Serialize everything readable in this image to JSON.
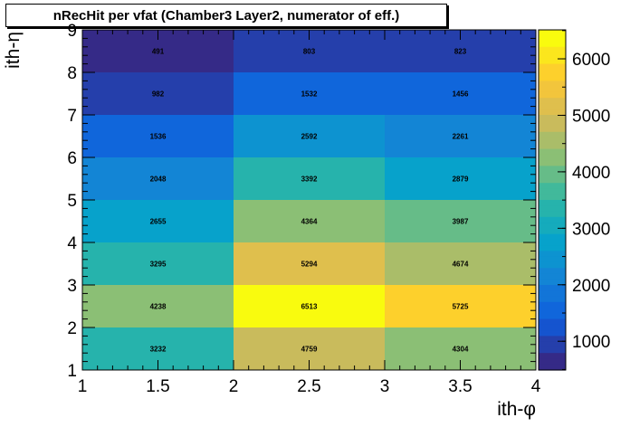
{
  "chart_data": {
    "type": "heatmap",
    "title": "nRecHit per vfat (Chamber3 Layer2, numerator of eff.)",
    "xlabel": "ith-φ",
    "ylabel": "ith-η",
    "xlim": [
      1,
      4
    ],
    "ylim": [
      1,
      9
    ],
    "x_ticks": [
      "1",
      "1.5",
      "2",
      "2.5",
      "3",
      "3.5",
      "4"
    ],
    "y_ticks": [
      "1",
      "2",
      "3",
      "4",
      "5",
      "6",
      "7",
      "8",
      "9"
    ],
    "x_bins": [
      [
        1,
        2
      ],
      [
        2,
        3
      ],
      [
        3,
        4
      ]
    ],
    "y_bins": [
      [
        1,
        2
      ],
      [
        2,
        3
      ],
      [
        3,
        4
      ],
      [
        4,
        5
      ],
      [
        5,
        6
      ],
      [
        6,
        7
      ],
      [
        7,
        8
      ],
      [
        8,
        9
      ]
    ],
    "values": [
      [
        3232,
        4759,
        4304
      ],
      [
        4238,
        6513,
        5725
      ],
      [
        3295,
        5294,
        4674
      ],
      [
        2655,
        4364,
        3987
      ],
      [
        2048,
        3392,
        2879
      ],
      [
        1536,
        2592,
        2261
      ],
      [
        982,
        1532,
        1456
      ],
      [
        491,
        803,
        823
      ]
    ],
    "zlim": [
      491,
      6513
    ],
    "z_ticks": [
      "1000",
      "2000",
      "3000",
      "4000",
      "5000",
      "6000"
    ],
    "colormap": [
      "#352a87",
      "#0f5cdd",
      "#1481d6",
      "#06a4ca",
      "#2eb7a4",
      "#87bf77",
      "#d1bb59",
      "#fec832",
      "#f9fb0e"
    ]
  }
}
